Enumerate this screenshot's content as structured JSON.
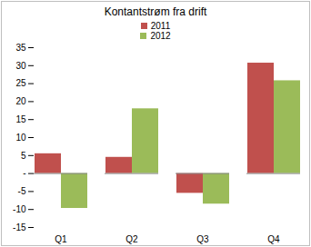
{
  "chart_data": {
    "type": "bar",
    "title": "Kontantstrøm fra drift",
    "categories": [
      "Q1",
      "Q2",
      "Q3",
      "Q4"
    ],
    "series": [
      {
        "name": "2011",
        "color": "#c0504d",
        "values": [
          5.5,
          4.5,
          -5.5,
          30.7
        ]
      },
      {
        "name": "2012",
        "color": "#9bbb59",
        "values": [
          -9.7,
          18,
          -8.5,
          25.8
        ]
      }
    ],
    "ylim": [
      -15,
      35
    ],
    "yticks": [
      -15,
      -10,
      -5,
      {
        "value": 0,
        "label": "-"
      },
      5,
      10,
      15,
      20,
      25,
      30,
      35
    ],
    "grid": false,
    "legend": "top"
  }
}
